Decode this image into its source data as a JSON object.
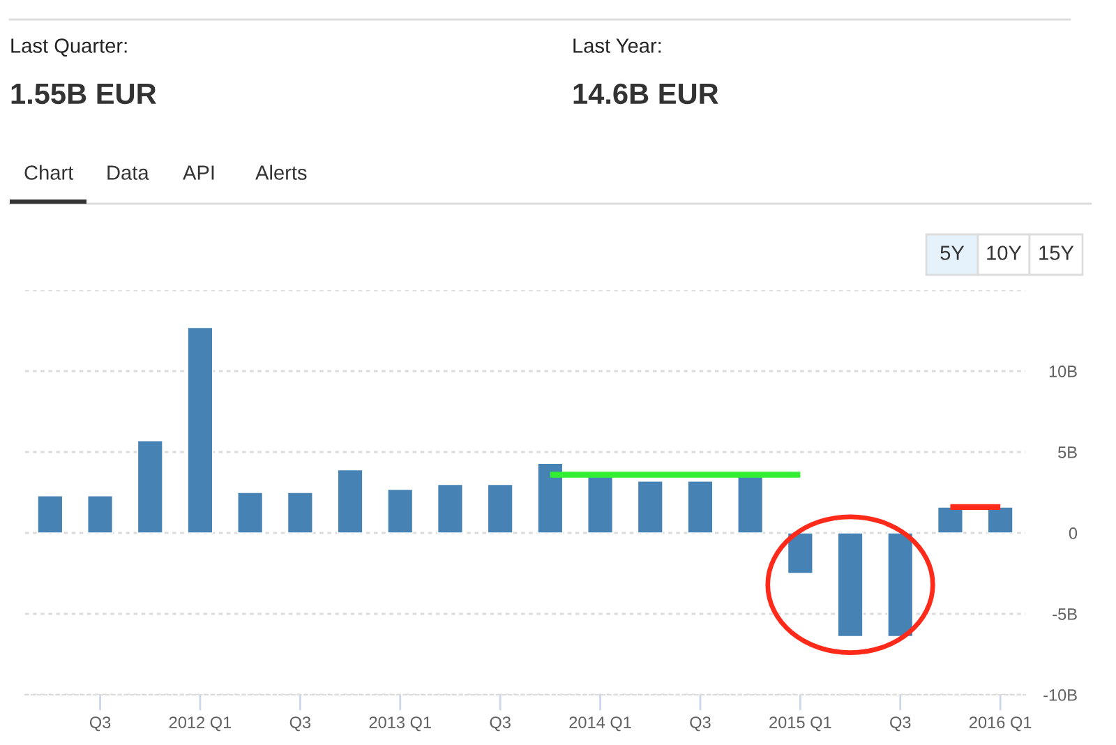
{
  "chart_data": [
    {
      "type": "other",
      "annotations": [
        "Last Quarter:",
        "Last Year:",
        "1.55B EUR",
        "14.6B EUR",
        "Chart",
        "Data",
        "API",
        "Alerts",
        "5Y",
        "10Y",
        "15Y"
      ]
    },
    {
      "type": "bar",
      "categories": [
        null,
        "Q3",
        null,
        "2012 Q1",
        null,
        "Q3",
        null,
        "2013 Q1",
        null,
        "Q3",
        null,
        "2014 Q1",
        null,
        "Q3",
        null,
        "2015 Q1",
        null,
        "Q3",
        null,
        "2016 Q1"
      ],
      "series": [
        {
          "type": "bar",
          "color": "#4682b4",
          "values": [
            2.3,
            2.3,
            5.7,
            12.7,
            2.5,
            2.5,
            3.9,
            2.7,
            3.0,
            3.0,
            4.3,
            3.6,
            3.2,
            3.2,
            3.6,
            -2.5,
            -6.4,
            -6.4,
            1.6,
            1.6
          ]
        },
        {
          "type": "line",
          "color": "#33ee33",
          "values": [
            null,
            null,
            null,
            null,
            null,
            null,
            null,
            null,
            null,
            null,
            3.6,
            3.6,
            3.6,
            3.6,
            3.6,
            3.6,
            null,
            null,
            null,
            null
          ]
        },
        {
          "type": "line",
          "color": "#ff2a1a",
          "values": [
            null,
            null,
            null,
            null,
            null,
            null,
            null,
            null,
            null,
            null,
            null,
            null,
            null,
            null,
            null,
            null,
            null,
            null,
            1.6,
            1.6
          ]
        }
      ],
      "ylim": [
        -10,
        15
      ],
      "yticks": [
        {
          "value": -10,
          "label": "-10B"
        },
        {
          "value": -5,
          "label": "-5B"
        },
        0,
        {
          "value": 5,
          "label": "5B"
        },
        {
          "value": 10,
          "label": "10B"
        },
        {
          "value": 15,
          "label": null
        }
      ],
      "grid": "y"
    }
  ]
}
